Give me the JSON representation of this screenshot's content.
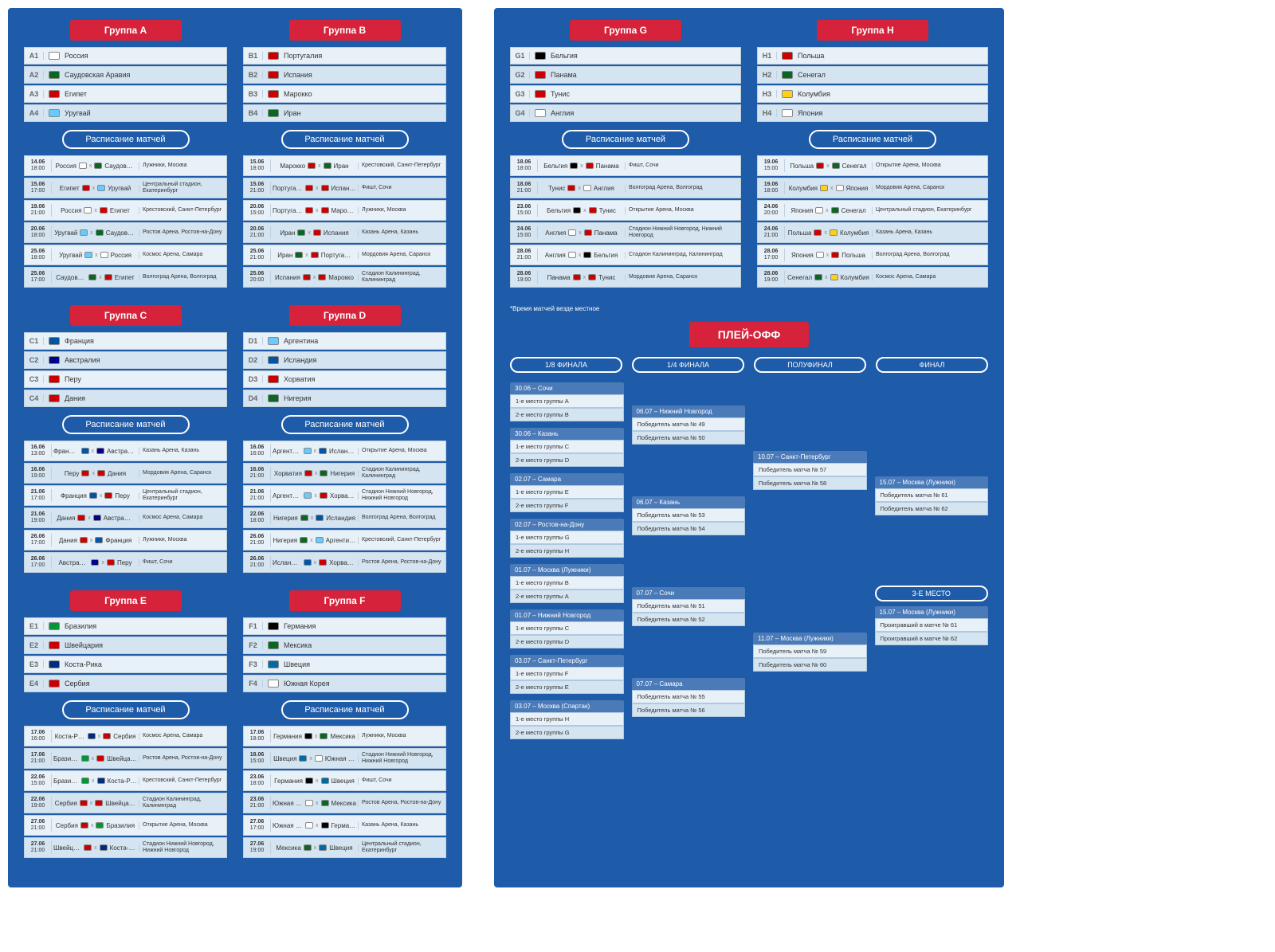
{
  "labels": {
    "schedule": "Расписание матчей",
    "playoff": "ПЛЕЙ-ОФФ",
    "footnote": "*Время матчей везде местное",
    "third_place": "3-Е МЕСТО",
    "stages": [
      "1/8 ФИНАЛА",
      "1/4 ФИНАЛА",
      "ПОЛУФИНАЛ",
      "ФИНАЛ"
    ]
  },
  "flags": {
    "Россия": "#fff",
    "Саудовская Аравия": "#0b6623",
    "Египет": "#c00",
    "Уругвай": "#6cf",
    "Португалия": "#c00",
    "Испания": "#c00",
    "Марокко": "#c00",
    "Иран": "#0b6623",
    "Франция": "#0055a4",
    "Австралия": "#00008b",
    "Перу": "#c00",
    "Дания": "#c00",
    "Аргентина": "#6cf",
    "Исландия": "#0055a4",
    "Хорватия": "#c00",
    "Нигерия": "#0b6623",
    "Бразилия": "#009739",
    "Швейцария": "#c00",
    "Коста-Рика": "#002b7f",
    "Сербия": "#c00",
    "Германия": "#000",
    "Мексика": "#0b6623",
    "Швеция": "#006aa7",
    "Южная Корея": "#fff",
    "Бельгия": "#000",
    "Панама": "#c00",
    "Тунис": "#c00",
    "Англия": "#fff",
    "Польша": "#c00",
    "Сенегал": "#0b6623",
    "Колумбия": "#fcd116",
    "Япония": "#fff"
  },
  "groups": [
    {
      "name": "Группа A",
      "code": "A",
      "teams": [
        "Россия",
        "Саудовская Аравия",
        "Египет",
        "Уругвай"
      ],
      "matches": [
        {
          "d": "14.06",
          "t": "18:00",
          "h": "Россия",
          "a": "Саудовская Аравия",
          "v": "Лужники, Москва"
        },
        {
          "d": "15.06",
          "t": "17:00",
          "h": "Египет",
          "a": "Уругвай",
          "v": "Центральный стадион, Екатеринбург"
        },
        {
          "d": "19.06",
          "t": "21:00",
          "h": "Россия",
          "a": "Египет",
          "v": "Крестовский, Санкт-Петербург"
        },
        {
          "d": "20.06",
          "t": "18:00",
          "h": "Уругвай",
          "a": "Саудовская Аравия",
          "v": "Ростов Арена, Ростов-на-Дону"
        },
        {
          "d": "25.06",
          "t": "18:00",
          "h": "Уругвай",
          "a": "Россия",
          "v": "Космос Арена, Самара"
        },
        {
          "d": "25.06",
          "t": "17:00",
          "h": "Саудовская Аравия",
          "a": "Египет",
          "v": "Волгоград Арена, Волгоград"
        }
      ]
    },
    {
      "name": "Группа B",
      "code": "B",
      "teams": [
        "Португалия",
        "Испания",
        "Марокко",
        "Иран"
      ],
      "matches": [
        {
          "d": "15.06",
          "t": "18:00",
          "h": "Марокко",
          "a": "Иран",
          "v": "Крестовский, Санкт-Петербург"
        },
        {
          "d": "15.06",
          "t": "21:00",
          "h": "Португалия",
          "a": "Испания",
          "v": "Фишт, Сочи"
        },
        {
          "d": "20.06",
          "t": "15:00",
          "h": "Португалия",
          "a": "Марокко",
          "v": "Лужники, Москва"
        },
        {
          "d": "20.06",
          "t": "21:00",
          "h": "Иран",
          "a": "Испания",
          "v": "Казань Арена, Казань"
        },
        {
          "d": "25.06",
          "t": "21:00",
          "h": "Иран",
          "a": "Португалия",
          "v": "Мордовия Арена, Саранск"
        },
        {
          "d": "25.06",
          "t": "20:00",
          "h": "Испания",
          "a": "Марокко",
          "v": "Стадион Калининград, Калининград"
        }
      ]
    },
    {
      "name": "Группа C",
      "code": "C",
      "teams": [
        "Франция",
        "Австралия",
        "Перу",
        "Дания"
      ],
      "matches": [
        {
          "d": "16.06",
          "t": "13:00",
          "h": "Франция",
          "a": "Австралия",
          "v": "Казань Арена, Казань"
        },
        {
          "d": "16.06",
          "t": "19:00",
          "h": "Перу",
          "a": "Дания",
          "v": "Мордовия Арена, Саранск"
        },
        {
          "d": "21.06",
          "t": "17:00",
          "h": "Франция",
          "a": "Перу",
          "v": "Центральный стадион, Екатеринбург"
        },
        {
          "d": "21.06",
          "t": "19:00",
          "h": "Дания",
          "a": "Австралия",
          "v": "Космос Арена, Самара"
        },
        {
          "d": "26.06",
          "t": "17:00",
          "h": "Дания",
          "a": "Франция",
          "v": "Лужники, Москва"
        },
        {
          "d": "26.06",
          "t": "17:00",
          "h": "Австралия",
          "a": "Перу",
          "v": "Фишт, Сочи"
        }
      ]
    },
    {
      "name": "Группа D",
      "code": "D",
      "teams": [
        "Аргентина",
        "Исландия",
        "Хорватия",
        "Нигерия"
      ],
      "matches": [
        {
          "d": "16.06",
          "t": "16:00",
          "h": "Аргентина",
          "a": "Исландия",
          "v": "Открытие Арена, Москва"
        },
        {
          "d": "16.06",
          "t": "21:00",
          "h": "Хорватия",
          "a": "Нигерия",
          "v": "Стадион Калининград, Калининград"
        },
        {
          "d": "21.06",
          "t": "21:00",
          "h": "Аргентина",
          "a": "Хорватия",
          "v": "Стадион Нижний Новгород, Нижний Новгород"
        },
        {
          "d": "22.06",
          "t": "18:00",
          "h": "Нигерия",
          "a": "Исландия",
          "v": "Волгоград Арена, Волгоград"
        },
        {
          "d": "26.06",
          "t": "21:00",
          "h": "Нигерия",
          "a": "Аргентина",
          "v": "Крестовский, Санкт-Петербург"
        },
        {
          "d": "26.06",
          "t": "21:00",
          "h": "Исландия",
          "a": "Хорватия",
          "v": "Ростов Арена, Ростов-на-Дону"
        }
      ]
    },
    {
      "name": "Группа E",
      "code": "E",
      "teams": [
        "Бразилия",
        "Швейцария",
        "Коста-Рика",
        "Сербия"
      ],
      "matches": [
        {
          "d": "17.06",
          "t": "16:00",
          "h": "Коста-Рика",
          "a": "Сербия",
          "v": "Космос Арена, Самара"
        },
        {
          "d": "17.06",
          "t": "21:00",
          "h": "Бразилия",
          "a": "Швейцария",
          "v": "Ростов Арена, Ростов-на-Дону"
        },
        {
          "d": "22.06",
          "t": "15:00",
          "h": "Бразилия",
          "a": "Коста-Рика",
          "v": "Крестовский, Санкт-Петербург"
        },
        {
          "d": "22.06",
          "t": "19:00",
          "h": "Сербия",
          "a": "Швейцария",
          "v": "Стадион Калининград, Калининград"
        },
        {
          "d": "27.06",
          "t": "21:00",
          "h": "Сербия",
          "a": "Бразилия",
          "v": "Открытие Арена, Москва"
        },
        {
          "d": "27.06",
          "t": "21:00",
          "h": "Швейцария",
          "a": "Коста-Рика",
          "v": "Стадион Нижний Новгород, Нижний Новгород"
        }
      ]
    },
    {
      "name": "Группа F",
      "code": "F",
      "teams": [
        "Германия",
        "Мексика",
        "Швеция",
        "Южная Корея"
      ],
      "matches": [
        {
          "d": "17.06",
          "t": "18:00",
          "h": "Германия",
          "a": "Мексика",
          "v": "Лужники, Москва"
        },
        {
          "d": "18.06",
          "t": "15:00",
          "h": "Швеция",
          "a": "Южная Корея",
          "v": "Стадион Нижний Новгород, Нижний Новгород"
        },
        {
          "d": "23.06",
          "t": "18:00",
          "h": "Германия",
          "a": "Швеция",
          "v": "Фишт, Сочи"
        },
        {
          "d": "23.06",
          "t": "21:00",
          "h": "Южная Корея",
          "a": "Мексика",
          "v": "Ростов Арена, Ростов-на-Дону"
        },
        {
          "d": "27.06",
          "t": "17:00",
          "h": "Южная Корея",
          "a": "Германия",
          "v": "Казань Арена, Казань"
        },
        {
          "d": "27.06",
          "t": "19:00",
          "h": "Мексика",
          "a": "Швеция",
          "v": "Центральный стадион, Екатеринбург"
        }
      ]
    },
    {
      "name": "Группа G",
      "code": "G",
      "teams": [
        "Бельгия",
        "Панама",
        "Тунис",
        "Англия"
      ],
      "matches": [
        {
          "d": "18.06",
          "t": "18:00",
          "h": "Бельгия",
          "a": "Панама",
          "v": "Фишт, Сочи"
        },
        {
          "d": "18.06",
          "t": "21:00",
          "h": "Тунис",
          "a": "Англия",
          "v": "Волгоград Арена, Волгоград"
        },
        {
          "d": "23.06",
          "t": "15:00",
          "h": "Бельгия",
          "a": "Тунис",
          "v": "Открытие Арена, Москва"
        },
        {
          "d": "24.06",
          "t": "15:00",
          "h": "Англия",
          "a": "Панама",
          "v": "Стадион Нижний Новгород, Нижний Новгород"
        },
        {
          "d": "28.06",
          "t": "21:00",
          "h": "Англия",
          "a": "Бельгия",
          "v": "Стадион Калининград, Калининград"
        },
        {
          "d": "28.06",
          "t": "19:00",
          "h": "Панама",
          "a": "Тунис",
          "v": "Мордовия Арена, Саранск"
        }
      ]
    },
    {
      "name": "Группа H",
      "code": "H",
      "teams": [
        "Польша",
        "Сенегал",
        "Колумбия",
        "Япония"
      ],
      "matches": [
        {
          "d": "19.06",
          "t": "15:00",
          "h": "Польша",
          "a": "Сенегал",
          "v": "Открытие Арена, Москва"
        },
        {
          "d": "19.06",
          "t": "18:00",
          "h": "Колумбия",
          "a": "Япония",
          "v": "Мордовия Арена, Саранск"
        },
        {
          "d": "24.06",
          "t": "20:00",
          "h": "Япония",
          "a": "Сенегал",
          "v": "Центральный стадион, Екатеринбург"
        },
        {
          "d": "24.06",
          "t": "21:00",
          "h": "Польша",
          "a": "Колумбия",
          "v": "Казань Арена, Казань"
        },
        {
          "d": "28.06",
          "t": "17:00",
          "h": "Япония",
          "a": "Польша",
          "v": "Волгоград Арена, Волгоград"
        },
        {
          "d": "28.06",
          "t": "19:00",
          "h": "Сенегал",
          "a": "Колумбия",
          "v": "Космос Арена, Самара"
        }
      ]
    }
  ],
  "bracket": {
    "r16": [
      {
        "title": "30.06 – Сочи",
        "s": [
          "1-е место группы A",
          "2-е место группы B"
        ]
      },
      {
        "title": "30.06 – Казань",
        "s": [
          "1-е место группы C",
          "2-е место группы D"
        ]
      },
      {
        "title": "02.07 – Самара",
        "s": [
          "1-е место группы E",
          "2-е место группы F"
        ]
      },
      {
        "title": "02.07 – Ростов-на-Дону",
        "s": [
          "1-е место группы G",
          "2-е место группы H"
        ]
      },
      {
        "title": "01.07 – Москва (Лужники)",
        "s": [
          "1-е место группы B",
          "2-е место группы A"
        ]
      },
      {
        "title": "01.07 – Нижний Новгород",
        "s": [
          "1-е место группы C",
          "2-е место группы D"
        ]
      },
      {
        "title": "03.07 – Санкт-Петербург",
        "s": [
          "1-е место группы F",
          "2-е место группы E"
        ]
      },
      {
        "title": "03.07 – Москва (Спартак)",
        "s": [
          "1-е место группы H",
          "2-е место группы G"
        ]
      }
    ],
    "qf": [
      {
        "title": "06.07 – Нижний Новгород",
        "s": [
          "Победитель матча № 49",
          "Победитель матча № 50"
        ]
      },
      {
        "title": "06.07 – Казань",
        "s": [
          "Победитель матча № 53",
          "Победитель матча № 54"
        ]
      },
      {
        "title": "07.07 – Сочи",
        "s": [
          "Победитель матча № 51",
          "Победитель матча № 52"
        ]
      },
      {
        "title": "07.07 – Самара",
        "s": [
          "Победитель матча № 55",
          "Победитель матча № 56"
        ]
      }
    ],
    "sf": [
      {
        "title": "10.07 – Санкт-Петербург",
        "s": [
          "Победитель матча № 57",
          "Победитель матча № 58"
        ]
      },
      {
        "title": "11.07 – Москва (Лужники)",
        "s": [
          "Победитель матча № 59",
          "Победитель матча № 60"
        ]
      }
    ],
    "final": {
      "title": "15.07 – Москва (Лужники)",
      "s": [
        "Победитель матча № 61",
        "Победитель матча № 62"
      ]
    },
    "third": {
      "title": "15.07 – Москва (Лужники)",
      "s": [
        "Проигравший в матче № 61",
        "Проигравший в матче № 62"
      ]
    }
  }
}
